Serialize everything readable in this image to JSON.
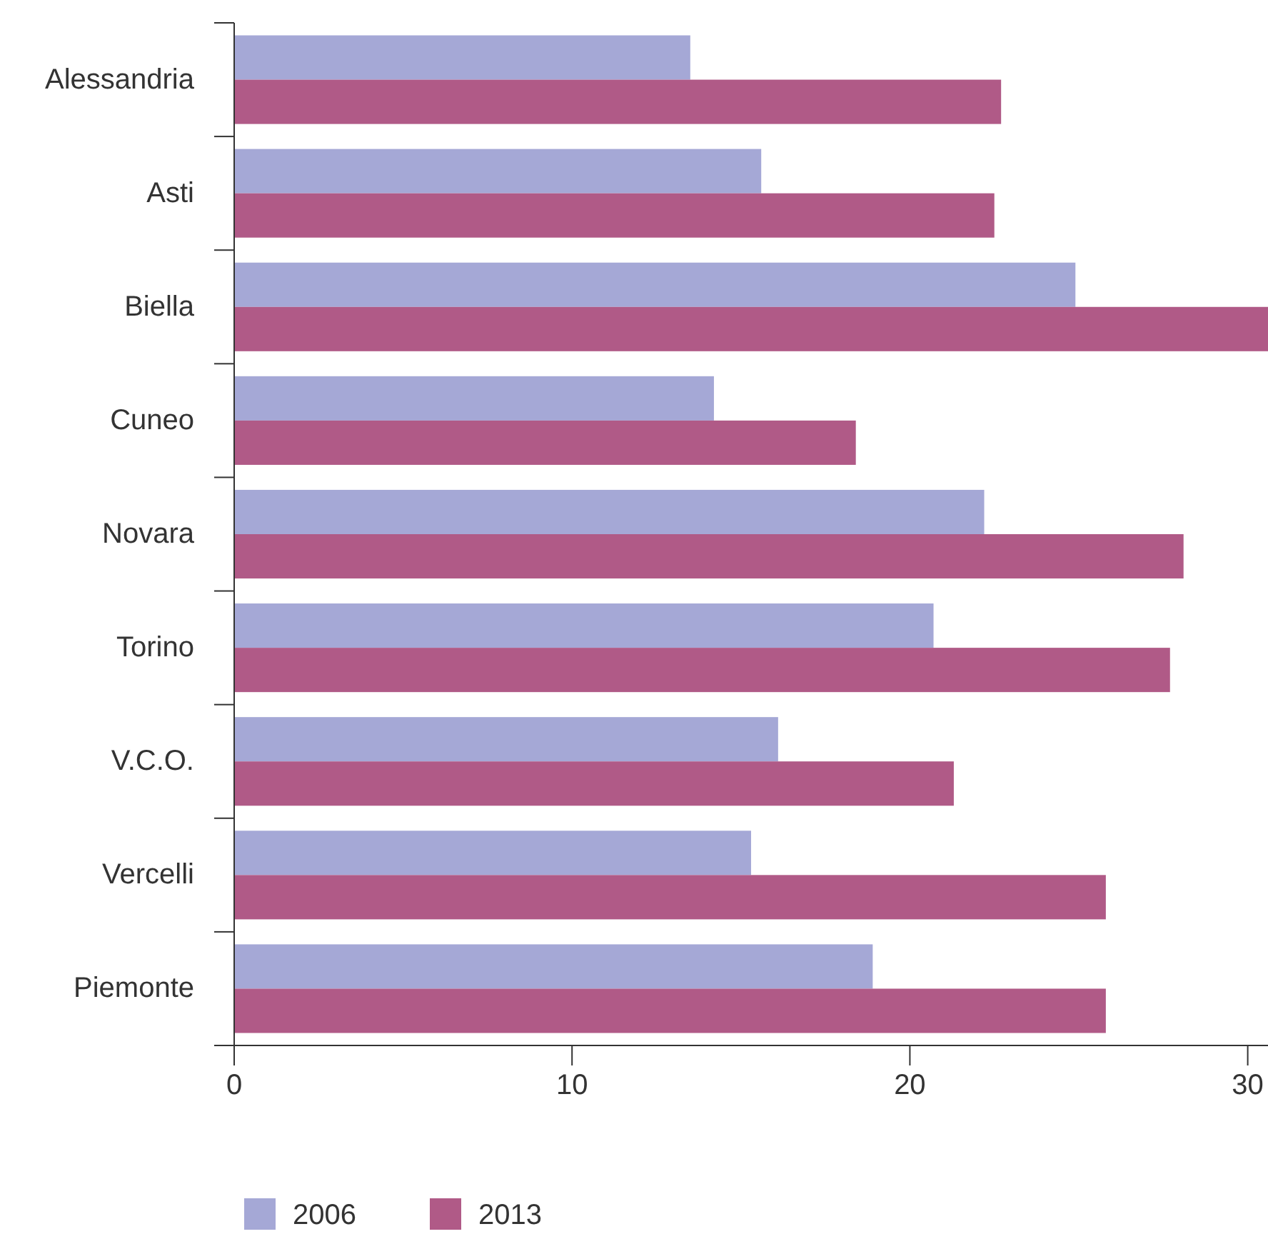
{
  "chart_data": {
    "type": "bar",
    "orientation": "horizontal",
    "categories": [
      "Alessandria",
      "Asti",
      "Biella",
      "Cuneo",
      "Novara",
      "Torino",
      "V.C.O.",
      "Vercelli",
      "Piemonte"
    ],
    "series": [
      {
        "name": "2006",
        "color": "#a5a8d6",
        "values": [
          13.5,
          15.6,
          24.9,
          14.2,
          22.2,
          20.7,
          16.1,
          15.3,
          18.9
        ]
      },
      {
        "name": "2013",
        "color": "#b05a87",
        "values": [
          22.7,
          22.5,
          30.6,
          18.4,
          28.1,
          27.7,
          21.3,
          25.8,
          25.8
        ]
      }
    ],
    "xlim": [
      0,
      30.6
    ],
    "xticks": [
      0,
      10,
      20,
      30
    ],
    "grid": false,
    "legend": "bottom left"
  }
}
